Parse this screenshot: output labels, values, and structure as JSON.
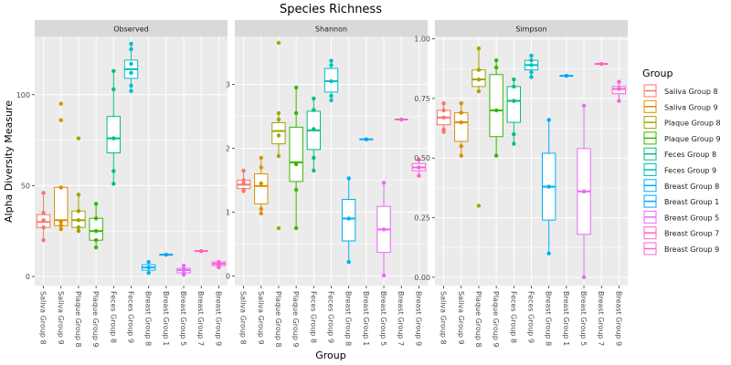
{
  "chart_data": {
    "type": "boxplot",
    "title": "Species Richness",
    "xlabel": "Group",
    "ylabel": "Alpha Diversity Measure",
    "facet_strip_fill": "#d9d9d9",
    "panel_background": "#ebebeb",
    "grid_color": "#ffffff",
    "legend_title": "Group",
    "legend_placement": "right",
    "groups": [
      {
        "label": "Saliva Group 8",
        "color": "#f8766d"
      },
      {
        "label": "Saliva Group 9",
        "color": "#d89000"
      },
      {
        "label": "Plaque Group 8",
        "color": "#a3a500"
      },
      {
        "label": "Plaque Group 9",
        "color": "#39b600"
      },
      {
        "label": "Feces Group 8",
        "color": "#00bf7d"
      },
      {
        "label": "Feces Group 9",
        "color": "#00bfc4"
      },
      {
        "label": "Breast Group 8",
        "color": "#00b0f6"
      },
      {
        "label": "Breast Group 1",
        "color": "#00a5ff"
      },
      {
        "label": "Breast Group 5",
        "color": "#e76bf3"
      },
      {
        "label": "Breast Group 7",
        "color": "#ff62bc"
      },
      {
        "label": "Breast Group 9",
        "color": "#fb61d7"
      }
    ],
    "panels": [
      {
        "name": "Observed",
        "ylim": [
          -5,
          132
        ],
        "yticks": [
          0,
          50,
          100
        ],
        "ytick_labels": [
          "0",
          "50",
          "100"
        ],
        "boxes": [
          {
            "q1": 27,
            "median": 30,
            "q3": 34,
            "wlo": 20,
            "whi": 46,
            "points": [
              46,
              35,
              31,
              27,
              20
            ]
          },
          {
            "q1": 28,
            "median": 31,
            "q3": 49,
            "wlo": 26,
            "whi": 49,
            "points": [
              95,
              86,
              49,
              30,
              28,
              26
            ]
          },
          {
            "q1": 27,
            "median": 31,
            "q3": 36,
            "wlo": 25,
            "whi": 45,
            "points": [
              76,
              45,
              36,
              31,
              27,
              25
            ]
          },
          {
            "q1": 20,
            "median": 25,
            "q3": 32,
            "wlo": 16,
            "whi": 40,
            "points": [
              40,
              32,
              25,
              20,
              16
            ]
          },
          {
            "q1": 68,
            "median": 76,
            "q3": 88,
            "wlo": 51,
            "whi": 113,
            "points": [
              113,
              103,
              76,
              58,
              51
            ]
          },
          {
            "q1": 109,
            "median": 114,
            "q3": 119,
            "wlo": 102,
            "whi": 128,
            "points": [
              128,
              125,
              117,
              112,
              105,
              102
            ]
          },
          {
            "q1": 3.5,
            "median": 5,
            "q3": 6.5,
            "wlo": 2,
            "whi": 8,
            "points": [
              8,
              5,
              2
            ]
          },
          {
            "q1": 12,
            "median": 12,
            "q3": 12,
            "wlo": 12,
            "whi": 12,
            "points": [
              12
            ]
          },
          {
            "q1": 2,
            "median": 3.5,
            "q3": 4.5,
            "wlo": 1,
            "whi": 6,
            "points": [
              6,
              4,
              2,
              1
            ]
          },
          {
            "q1": 14,
            "median": 14,
            "q3": 14,
            "wlo": 14,
            "whi": 14,
            "points": [
              14
            ]
          },
          {
            "q1": 6,
            "median": 7,
            "q3": 8,
            "wlo": 5,
            "whi": 8,
            "points": [
              8,
              6,
              5
            ]
          }
        ]
      },
      {
        "name": "Shannon",
        "ylim": [
          -0.15,
          3.75
        ],
        "yticks": [
          0,
          1,
          2,
          3
        ],
        "ytick_labels": [
          "0",
          "1",
          "2",
          "3"
        ],
        "boxes": [
          {
            "q1": 1.37,
            "median": 1.43,
            "q3": 1.5,
            "wlo": 1.33,
            "whi": 1.65,
            "points": [
              1.65,
              1.5,
              1.45,
              1.35,
              1.33
            ]
          },
          {
            "q1": 1.13,
            "median": 1.41,
            "q3": 1.6,
            "wlo": 0.98,
            "whi": 1.85,
            "points": [
              1.85,
              1.7,
              1.45,
              1.05,
              0.98
            ]
          },
          {
            "q1": 2.07,
            "median": 2.27,
            "q3": 2.4,
            "wlo": 1.88,
            "whi": 2.55,
            "points": [
              3.65,
              2.55,
              2.45,
              2.2,
              1.88,
              0.75
            ]
          },
          {
            "q1": 1.48,
            "median": 1.78,
            "q3": 2.33,
            "wlo": 0.75,
            "whi": 2.95,
            "points": [
              2.95,
              2.55,
              1.75,
              1.35,
              0.75
            ]
          },
          {
            "q1": 1.98,
            "median": 2.28,
            "q3": 2.58,
            "wlo": 1.65,
            "whi": 2.78,
            "points": [
              2.78,
              2.6,
              2.3,
              1.85,
              1.65
            ]
          },
          {
            "q1": 2.88,
            "median": 3.05,
            "q3": 3.25,
            "wlo": 2.75,
            "whi": 3.37,
            "points": [
              3.37,
              3.3,
              3.05,
              2.82,
              2.75
            ]
          },
          {
            "q1": 0.55,
            "median": 0.9,
            "q3": 1.2,
            "wlo": 0.22,
            "whi": 1.53,
            "points": [
              1.53,
              0.9,
              0.22
            ]
          },
          {
            "q1": 2.14,
            "median": 2.14,
            "q3": 2.14,
            "wlo": 2.14,
            "whi": 2.14,
            "points": [
              2.14
            ]
          },
          {
            "q1": 0.37,
            "median": 0.73,
            "q3": 1.09,
            "wlo": 0.01,
            "whi": 1.46,
            "points": [
              1.46,
              0.73,
              0.01
            ]
          },
          {
            "q1": 2.45,
            "median": 2.45,
            "q3": 2.45,
            "wlo": 2.45,
            "whi": 2.45,
            "points": [
              2.45
            ]
          },
          {
            "q1": 1.65,
            "median": 1.7,
            "q3": 1.76,
            "wlo": 1.57,
            "whi": 1.82,
            "points": [
              1.82,
              1.7,
              1.57
            ]
          }
        ]
      },
      {
        "name": "Simpson",
        "ylim": [
          -0.035,
          1.01
        ],
        "yticks": [
          0,
          0.25,
          0.5,
          0.75,
          1
        ],
        "ytick_labels": [
          "0.00",
          "0.25",
          "0.50",
          "0.75",
          "1.00"
        ],
        "boxes": [
          {
            "q1": 0.64,
            "median": 0.67,
            "q3": 0.7,
            "wlo": 0.61,
            "whi": 0.73,
            "points": [
              0.73,
              0.7,
              0.67,
              0.62,
              0.61
            ]
          },
          {
            "q1": 0.57,
            "median": 0.65,
            "q3": 0.69,
            "wlo": 0.51,
            "whi": 0.73,
            "points": [
              0.73,
              0.69,
              0.65,
              0.55,
              0.51
            ]
          },
          {
            "q1": 0.8,
            "median": 0.83,
            "q3": 0.87,
            "wlo": 0.78,
            "whi": 0.96,
            "points": [
              0.96,
              0.87,
              0.83,
              0.78,
              0.3
            ]
          },
          {
            "q1": 0.59,
            "median": 0.7,
            "q3": 0.85,
            "wlo": 0.51,
            "whi": 0.91,
            "points": [
              0.91,
              0.88,
              0.7,
              0.51
            ]
          },
          {
            "q1": 0.65,
            "median": 0.74,
            "q3": 0.8,
            "wlo": 0.56,
            "whi": 0.83,
            "points": [
              0.83,
              0.8,
              0.74,
              0.6,
              0.56
            ]
          },
          {
            "q1": 0.87,
            "median": 0.89,
            "q3": 0.91,
            "wlo": 0.84,
            "whi": 0.93,
            "points": [
              0.93,
              0.91,
              0.89,
              0.86,
              0.84
            ]
          },
          {
            "q1": 0.24,
            "median": 0.38,
            "q3": 0.52,
            "wlo": 0.1,
            "whi": 0.66,
            "points": [
              0.66,
              0.38,
              0.1
            ]
          },
          {
            "q1": 0.845,
            "median": 0.845,
            "q3": 0.845,
            "wlo": 0.845,
            "whi": 0.845,
            "points": [
              0.845
            ]
          },
          {
            "q1": 0.18,
            "median": 0.36,
            "q3": 0.54,
            "wlo": 0.0,
            "whi": 0.72,
            "points": [
              0.72,
              0.36,
              0.0
            ]
          },
          {
            "q1": 0.895,
            "median": 0.895,
            "q3": 0.895,
            "wlo": 0.895,
            "whi": 0.895,
            "points": [
              0.895
            ]
          },
          {
            "q1": 0.77,
            "median": 0.79,
            "q3": 0.8,
            "wlo": 0.74,
            "whi": 0.82,
            "points": [
              0.82,
              0.79,
              0.74
            ]
          }
        ]
      }
    ]
  }
}
